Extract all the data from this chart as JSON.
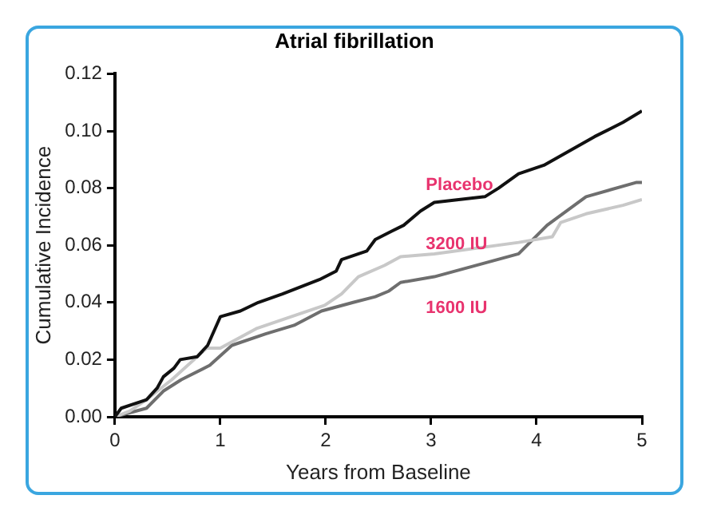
{
  "chart_data": {
    "type": "line",
    "title": "Atrial fibrillation",
    "xlabel": "Years from Baseline",
    "ylabel": "Cumulative Incidence",
    "xlim": [
      0,
      5
    ],
    "xticks": [
      0,
      1,
      2,
      3,
      4,
      5
    ],
    "ylim": [
      0,
      0.12
    ],
    "yticks": [
      {
        "value": 0,
        "label": "0.00"
      },
      0.02,
      0.04,
      0.06,
      0.08,
      {
        "value": 0.1,
        "label": "0.10"
      },
      0.12
    ],
    "grid": false,
    "legend": false,
    "marker": "none",
    "line_style": "solid",
    "series": [
      {
        "name": "Placebo",
        "color": "#111111",
        "x": [
          0,
          0.06,
          0.3,
          0.4,
          0.46,
          0.56,
          0.62,
          0.78,
          0.88,
          1.0,
          1.19,
          1.36,
          1.59,
          1.94,
          2.1,
          2.15,
          2.39,
          2.47,
          2.63,
          2.74,
          2.9,
          3.03,
          3.51,
          3.64,
          3.83,
          4.07,
          4.55,
          4.82,
          5.0
        ],
        "values": [
          0,
          0.003,
          0.006,
          0.01,
          0.014,
          0.017,
          0.02,
          0.021,
          0.025,
          0.035,
          0.037,
          0.04,
          0.043,
          0.048,
          0.051,
          0.055,
          0.058,
          0.062,
          0.065,
          0.067,
          0.072,
          0.075,
          0.077,
          0.08,
          0.085,
          0.088,
          0.098,
          0.103,
          0.107
        ]
      },
      {
        "name": "3200 IU",
        "color": "#c8c8c8",
        "x": [
          0,
          0.14,
          0.3,
          0.54,
          0.87,
          1.0,
          1.35,
          1.75,
          1.99,
          2.15,
          2.31,
          2.56,
          2.71,
          3.03,
          3.83,
          4.15,
          4.23,
          4.47,
          4.82,
          5.0
        ],
        "values": [
          0,
          0.002,
          0.006,
          0.013,
          0.024,
          0.024,
          0.031,
          0.036,
          0.039,
          0.043,
          0.049,
          0.053,
          0.056,
          0.057,
          0.061,
          0.063,
          0.068,
          0.071,
          0.074,
          0.076
        ]
      },
      {
        "name": "1600 IU",
        "color": "#6e6e6e",
        "x": [
          0,
          0.3,
          0.46,
          0.63,
          0.9,
          1.11,
          1.43,
          1.7,
          1.96,
          2.26,
          2.47,
          2.6,
          2.71,
          3.03,
          3.83,
          4.1,
          4.47,
          4.95,
          5.0
        ],
        "values": [
          0,
          0.003,
          0.009,
          0.013,
          0.018,
          0.025,
          0.029,
          0.032,
          0.037,
          0.04,
          0.042,
          0.044,
          0.047,
          0.049,
          0.057,
          0.067,
          0.077,
          0.082,
          0.082
        ]
      }
    ]
  }
}
